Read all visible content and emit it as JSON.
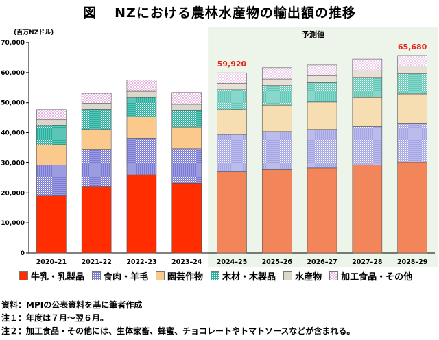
{
  "header": {
    "figure_label": "図",
    "title": "NZにおける農林水産物の輸出額の推移"
  },
  "forecast_label": "予測値",
  "notes": [
    "資料：MPIの公表資料を基に筆者作成",
    "注１：年度は７月～翌６月。",
    "注２：加工食品・その他には、生体家畜、蜂蜜、チョコレートやトマトソースなどが含まれる。"
  ],
  "colors": {
    "forecast_bg": "#edf5ea",
    "actual": [
      "#ff2d00",
      "#7b7bd6",
      "#fbc98c",
      "#27b0a0",
      "#ddd6cb",
      "#e9b5e3"
    ],
    "forecast": [
      "#f2865a",
      "#a4a6e4",
      "#f7ddb2",
      "#62c8b8",
      "#e6e0d6",
      "#efcbeb"
    ],
    "total_label": "#e8231a"
  },
  "chart_data": {
    "type": "bar",
    "stacked": true,
    "unit_label": "(百万NZドル)",
    "categories": [
      "2020–21",
      "2021–22",
      "2022–23",
      "2023–24",
      "2024–25",
      "2025–26",
      "2026–27",
      "2027–28",
      "2028–29"
    ],
    "forecast_start_index": 4,
    "ylim": [
      0,
      70000
    ],
    "yticks": [
      "0",
      "10,000",
      "20,000",
      "30,000",
      "40,000",
      "50,000",
      "60,000",
      "70,000"
    ],
    "ytick_values": [
      0,
      10000,
      20000,
      30000,
      40000,
      50000,
      60000,
      70000
    ],
    "grid": false,
    "legend_position": "bottom",
    "series": [
      {
        "name": "牛乳・乳製品",
        "pattern": "solid",
        "values": [
          19000,
          22000,
          26000,
          23200,
          27000,
          27700,
          28300,
          29300,
          30100
        ]
      },
      {
        "name": "食肉・羊毛",
        "pattern": "dots",
        "values": [
          10300,
          12300,
          12000,
          11500,
          12400,
          12700,
          12800,
          12800,
          12900
        ]
      },
      {
        "name": "園芸作物",
        "pattern": "solid",
        "values": [
          6700,
          6800,
          7300,
          7000,
          8300,
          8800,
          9100,
          9600,
          9900
        ]
      },
      {
        "name": "木材・木製品",
        "pattern": "dots",
        "values": [
          6400,
          6700,
          6400,
          5700,
          6600,
          6500,
          6500,
          6500,
          6700
        ]
      },
      {
        "name": "水産物",
        "pattern": "solid",
        "values": [
          1900,
          2000,
          2100,
          2100,
          2100,
          2200,
          2200,
          2400,
          2500
        ]
      },
      {
        "name": "加工食品・その他",
        "pattern": "checks",
        "values": [
          3400,
          3300,
          3800,
          3900,
          3520,
          3700,
          3600,
          3900,
          3580
        ]
      }
    ],
    "data_labels": [
      {
        "index": 4,
        "text": "59,920"
      },
      {
        "index": 8,
        "text": "65,680"
      }
    ]
  }
}
